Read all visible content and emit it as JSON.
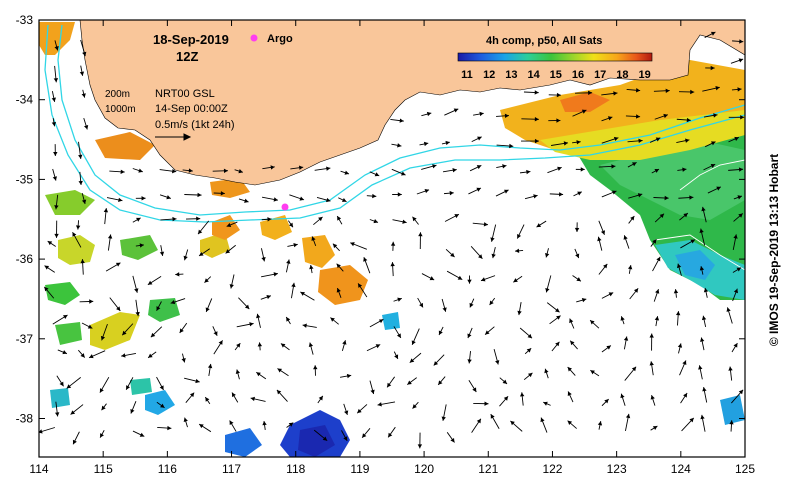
{
  "header": {
    "date": "18-Sep-2019",
    "hour": "12Z",
    "argo_label": "Argo",
    "colorbar_title": "4h comp, p50, All Sats",
    "colorbar_ticks": [
      "11",
      "12",
      "13",
      "14",
      "15",
      "16",
      "17",
      "18",
      "19"
    ]
  },
  "legend": {
    "isobath_200": "200m",
    "isobath_1000": "1000m",
    "product": "NRT00 GSL",
    "product_date": "14-Sep 00:00Z",
    "scale": "0.5m/s (1kt 24h)"
  },
  "axes": {
    "lon_ticks": [
      "114",
      "115",
      "116",
      "117",
      "118",
      "119",
      "120",
      "121",
      "122",
      "123",
      "124",
      "125"
    ],
    "lat_ticks": [
      "-33",
      "-34",
      "-35",
      "-36",
      "-37",
      "-38"
    ]
  },
  "credit": "© IMOS 19-Sep-2019 13:13 Hobart",
  "colors": {
    "land": "#f9c69a",
    "isobath": "#31d6e6",
    "argo": "#ff3df0",
    "sst_scale": [
      "#1a1aa6",
      "#1f5de0",
      "#1aa3e8",
      "#2ccf9a",
      "#3cc43c",
      "#9fd62a",
      "#f0e018",
      "#f7a61a",
      "#e8561a",
      "#b01a10"
    ]
  }
}
